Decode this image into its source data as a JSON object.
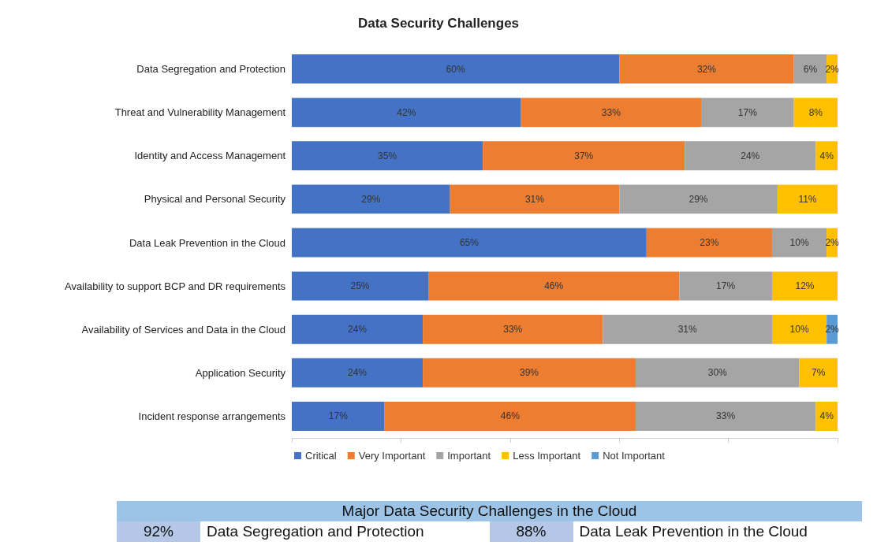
{
  "chart_data": [
    {
      "type": "bar",
      "title": "Data Security Challenges",
      "orientation": "horizontal",
      "stacked": true,
      "legend": "bottom",
      "grid": false,
      "tick_labels": "y",
      "xlim": [
        0,
        100
      ],
      "xticks": [
        {
          "value": 0,
          "label": null
        },
        {
          "value": 20,
          "label": null
        },
        {
          "value": 40,
          "label": null
        },
        {
          "value": 60,
          "label": null
        },
        {
          "value": 80,
          "label": null
        },
        {
          "value": 100,
          "label": null
        }
      ],
      "categories": [
        "Data Segregation and Protection",
        "Threat and Vulnerability Management",
        "Identity and Access Management",
        "Physical and Personal Security",
        "Data Leak Prevention in the Cloud",
        "Availability to support BCP and DR requirements",
        "Availability of Services and Data in the Cloud",
        "Application Security",
        "Incident response arrangements"
      ],
      "series": [
        {
          "name": "Critical",
          "color": "#4472c4",
          "values": [
            60,
            42,
            35,
            29,
            65,
            25,
            24,
            24,
            17
          ],
          "value_labels": [
            "60%",
            "42%",
            "35%",
            "29%",
            "65%",
            "25%",
            "24%",
            "24%",
            "17%"
          ]
        },
        {
          "name": "Very Important",
          "color": "#ed7d31",
          "values": [
            32,
            33,
            37,
            31,
            23,
            46,
            33,
            39,
            46
          ],
          "value_labels": [
            "32%",
            "33%",
            "37%",
            "31%",
            "23%",
            "46%",
            "33%",
            "39%",
            "46%"
          ]
        },
        {
          "name": "Important",
          "color": "#a5a5a5",
          "values": [
            6,
            17,
            24,
            29,
            10,
            17,
            31,
            30,
            33
          ],
          "value_labels": [
            "6%",
            "17%",
            "24%",
            "29%",
            "10%",
            "17%",
            "31%",
            "30%",
            "33%"
          ]
        },
        {
          "name": "Less Important",
          "color": "#ffc000",
          "values": [
            2,
            8,
            4,
            11,
            2,
            12,
            10,
            7,
            4
          ],
          "value_labels": [
            "2%",
            "8%",
            "4%",
            "11%",
            "2%",
            "12%",
            "10%",
            "7%",
            "4%"
          ]
        },
        {
          "name": "Not Important",
          "color": "#5b9bd5",
          "values": [
            0,
            0,
            0,
            0,
            0,
            0,
            2,
            0,
            0
          ],
          "value_labels": [
            null,
            null,
            null,
            null,
            null,
            null,
            "2%",
            null,
            null
          ]
        }
      ]
    },
    {
      "type": "other",
      "title": "Major Data Security Challenges in the Cloud",
      "categories": [
        "Data Segregation and Protection",
        "Data Leak Prevention in the Cloud"
      ],
      "value_labels": [
        "92%",
        "88%"
      ]
    }
  ]
}
